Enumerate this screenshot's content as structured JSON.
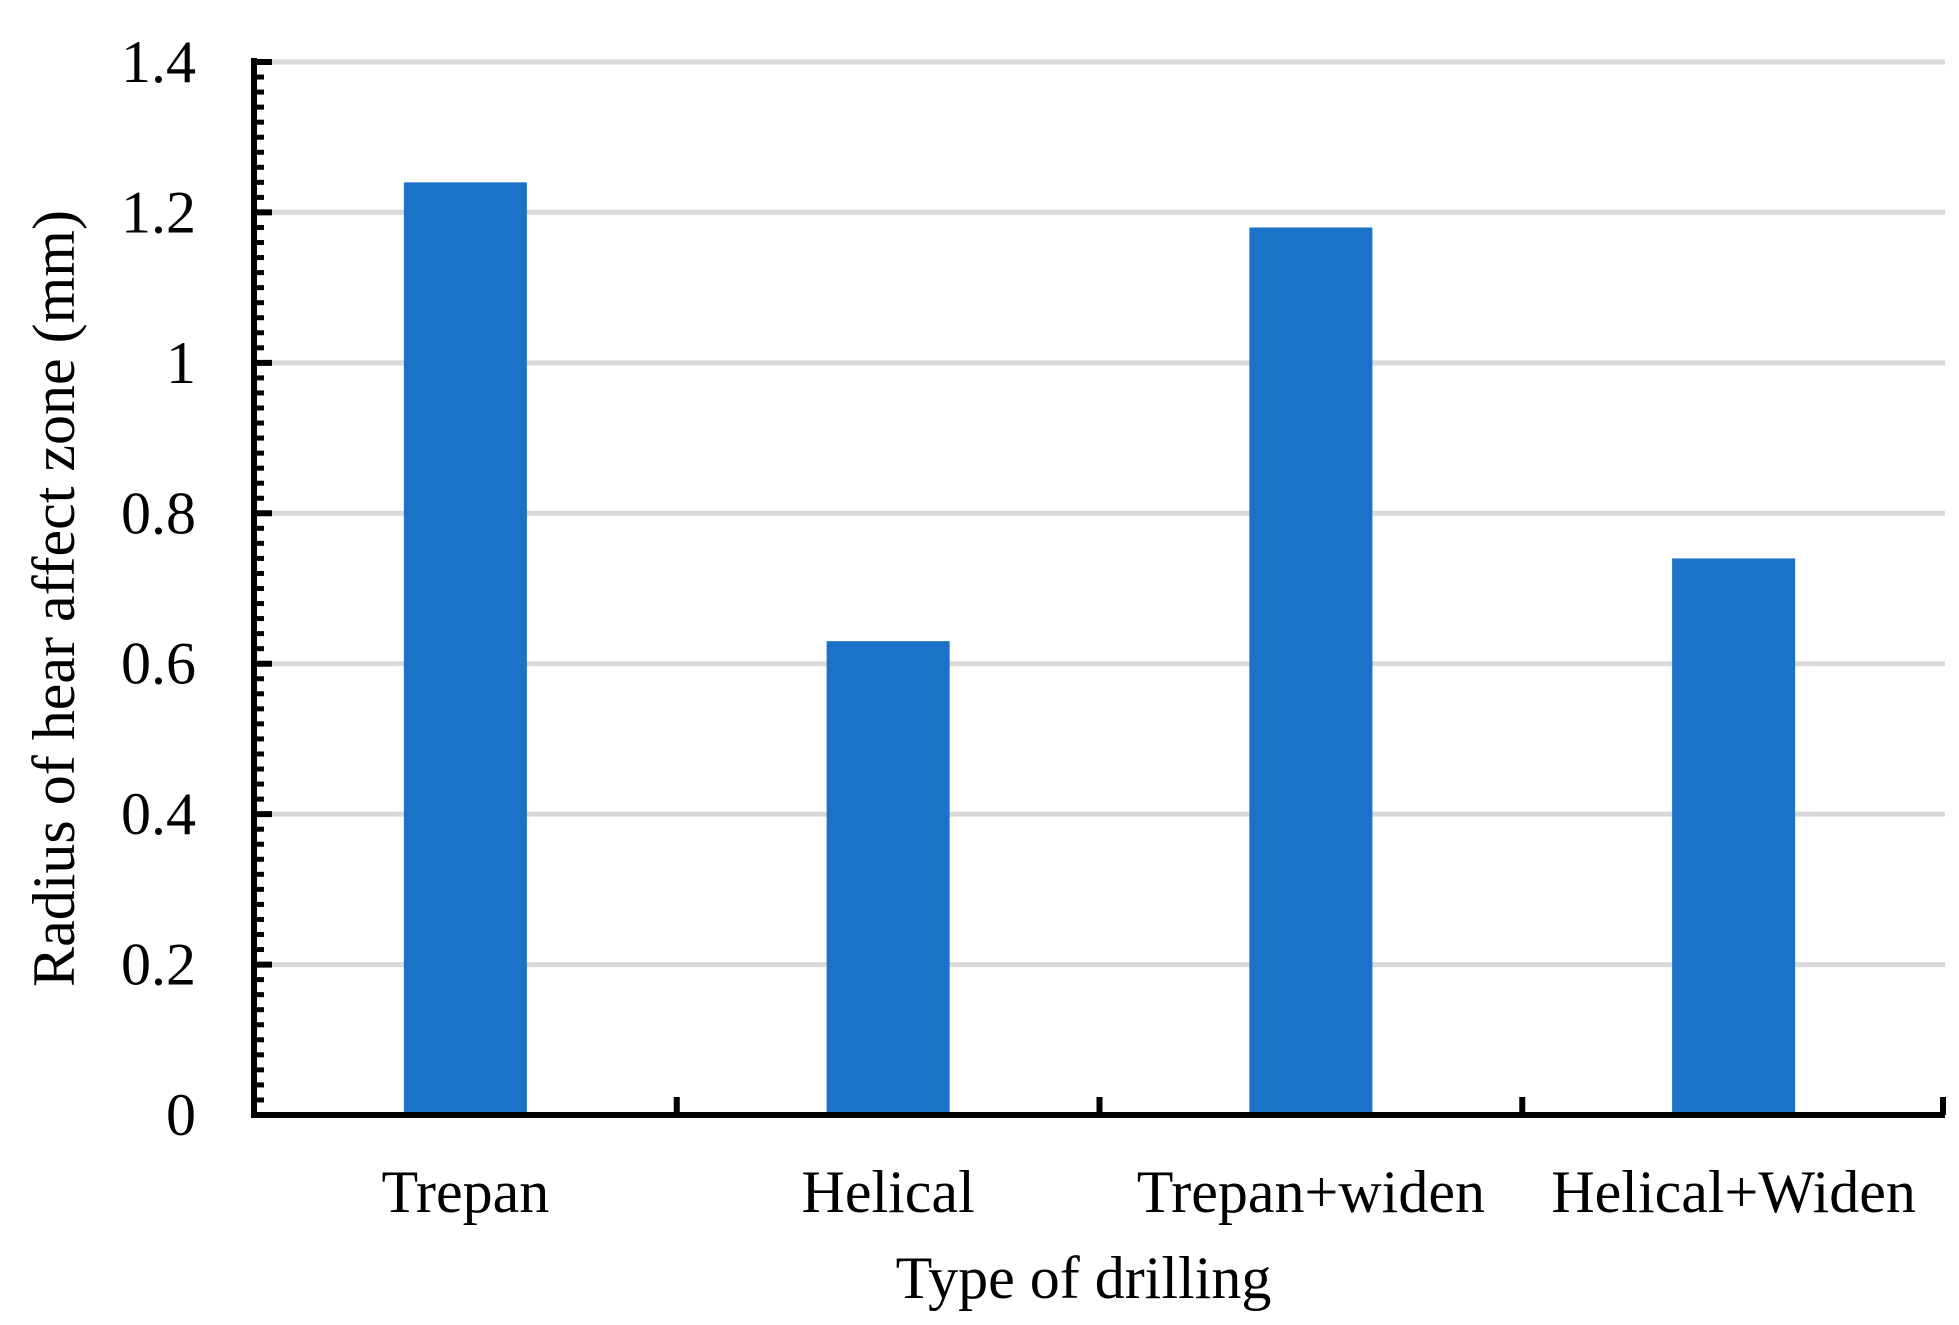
{
  "chart_data": {
    "type": "bar",
    "categories": [
      "Trepan",
      "Helical",
      "Trepan+widen",
      "Helical+Widen"
    ],
    "values": [
      1.24,
      0.63,
      1.18,
      0.74
    ],
    "title": "",
    "xlabel": "Type of drilling",
    "ylabel": "Radius of hear affect zone (mm)",
    "ylim": [
      0,
      1.4
    ],
    "yticks": [
      0,
      0.2,
      0.4,
      0.6,
      0.8,
      1,
      1.2,
      1.4
    ],
    "ytick_labels": [
      "0",
      "0.2",
      "0.4",
      "0.6",
      "0.8",
      "1",
      "1.2",
      "1.4"
    ],
    "grid": true,
    "legend": "none",
    "colors": {
      "bar": "#1a73c8",
      "grid": "#d9d9d9",
      "axis": "#000000"
    }
  }
}
